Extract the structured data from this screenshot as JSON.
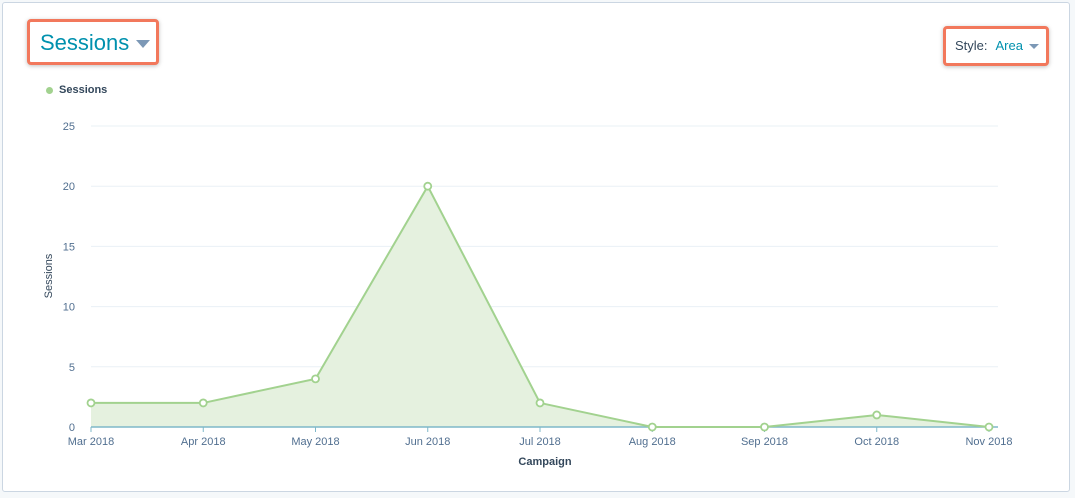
{
  "header": {
    "metric_label": "Sessions",
    "style_prefix": "Style:",
    "style_value": "Area"
  },
  "colors": {
    "series": "#a2d28f",
    "series_fill": "#e5f1df",
    "accent": "#0091ae",
    "highlight": "#f2785c"
  },
  "chart_data": {
    "type": "area",
    "categories": [
      "Mar 2018",
      "Apr 2018",
      "May 2018",
      "Jun 2018",
      "Jul 2018",
      "Aug 2018",
      "Sep 2018",
      "Oct 2018",
      "Nov 2018"
    ],
    "series": [
      {
        "name": "Sessions",
        "values": [
          2,
          2,
          4,
          20,
          2,
          0,
          0,
          1,
          0
        ]
      }
    ],
    "xlabel": "Campaign",
    "ylabel": "Sessions",
    "ylim": [
      0,
      25
    ],
    "yticks": [
      0,
      5,
      10,
      15,
      20,
      25
    ],
    "grid": true,
    "legend": "top-left"
  }
}
